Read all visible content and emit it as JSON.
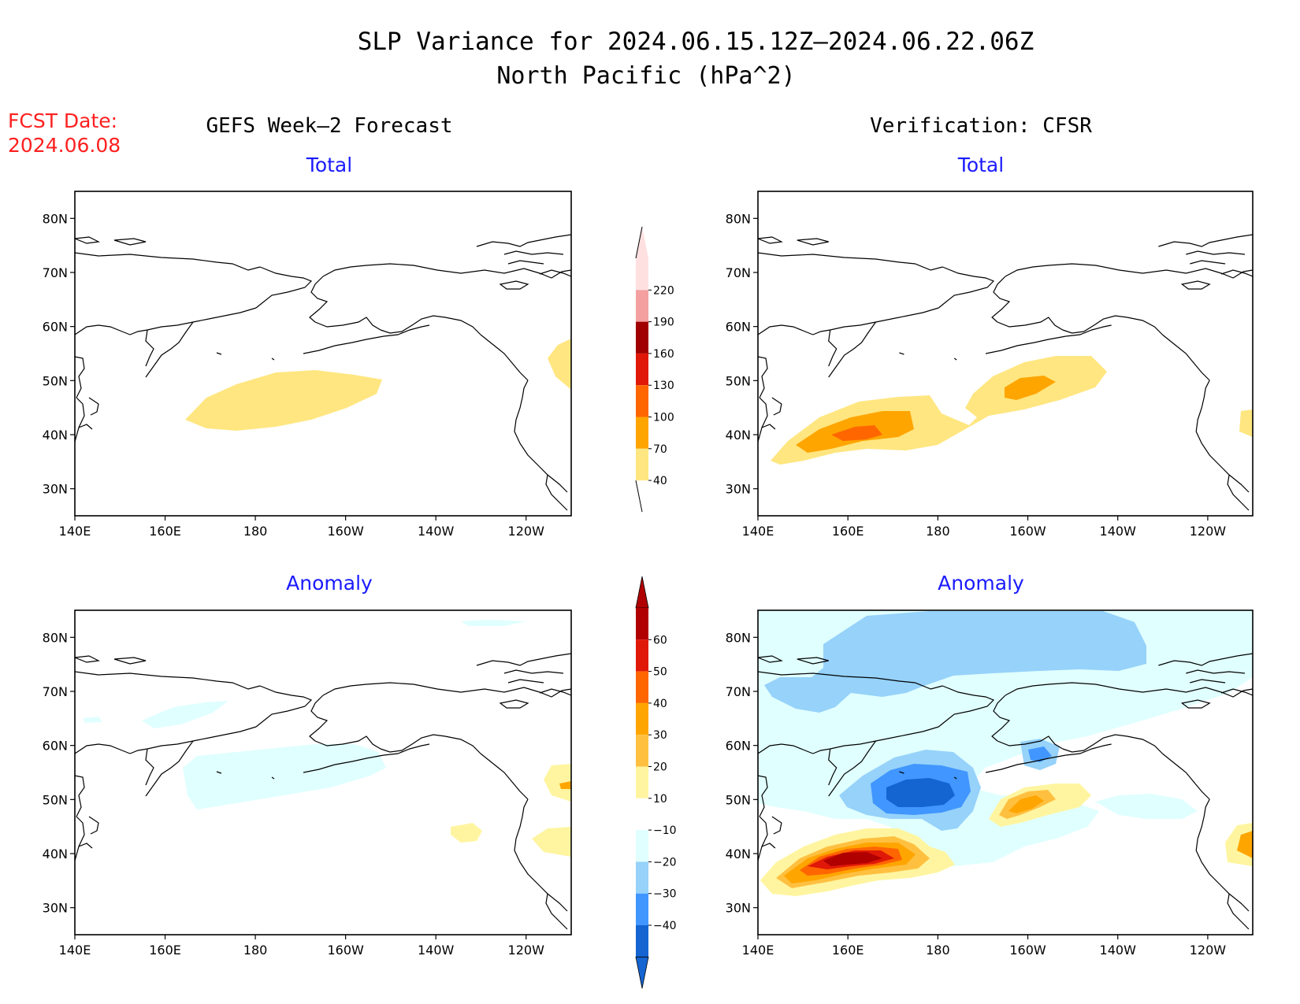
{
  "header": {
    "title_line1": "SLP Variance for 2024.06.15.12Z–2024.06.22.06Z",
    "title_line2": "North Pacific (hPa^2)"
  },
  "fcst": {
    "line1": "FCST Date:",
    "line2": "2024.06.08"
  },
  "columns": {
    "left": "GEFS Week–2 Forecast",
    "right": "Verification: CFSR"
  },
  "panels": [
    {
      "id": "fcst-total",
      "subtitle": "Total"
    },
    {
      "id": "verif-total",
      "subtitle": "Total"
    },
    {
      "id": "fcst-anomaly",
      "subtitle": "Anomaly"
    },
    {
      "id": "verif-anomaly",
      "subtitle": "Anomaly"
    }
  ],
  "map_axes": {
    "lon_ticks": [
      "140E",
      "160E",
      "180",
      "160W",
      "140W",
      "120W"
    ],
    "lon_values": [
      140,
      160,
      180,
      200,
      220,
      240
    ],
    "lat_ticks": [
      "80N",
      "70N",
      "60N",
      "50N",
      "40N",
      "30N"
    ],
    "lat_values": [
      80,
      70,
      60,
      50,
      40,
      30
    ],
    "lon_range": [
      140,
      250
    ],
    "lat_range": [
      25,
      85
    ]
  },
  "colorbars": {
    "total": {
      "labels": [
        "220",
        "190",
        "160",
        "130",
        "100",
        "70",
        "40"
      ],
      "colors": [
        "#ffe0e0",
        "#f4a0a0",
        "#a00000",
        "#e01808",
        "#ff6600",
        "#ffa500",
        "#ffe680"
      ]
    },
    "anomaly": {
      "labels": [
        "60",
        "50",
        "40",
        "30",
        "20",
        "10",
        "−10",
        "−20",
        "−30",
        "−40"
      ],
      "colors": [
        "#b00000",
        "#e01808",
        "#ff6600",
        "#ffa500",
        "#ffc040",
        "#fff5a0",
        "#ffffff",
        "#e0ffff",
        "#96d2fa",
        "#4196ff",
        "#1464d2"
      ]
    }
  }
}
